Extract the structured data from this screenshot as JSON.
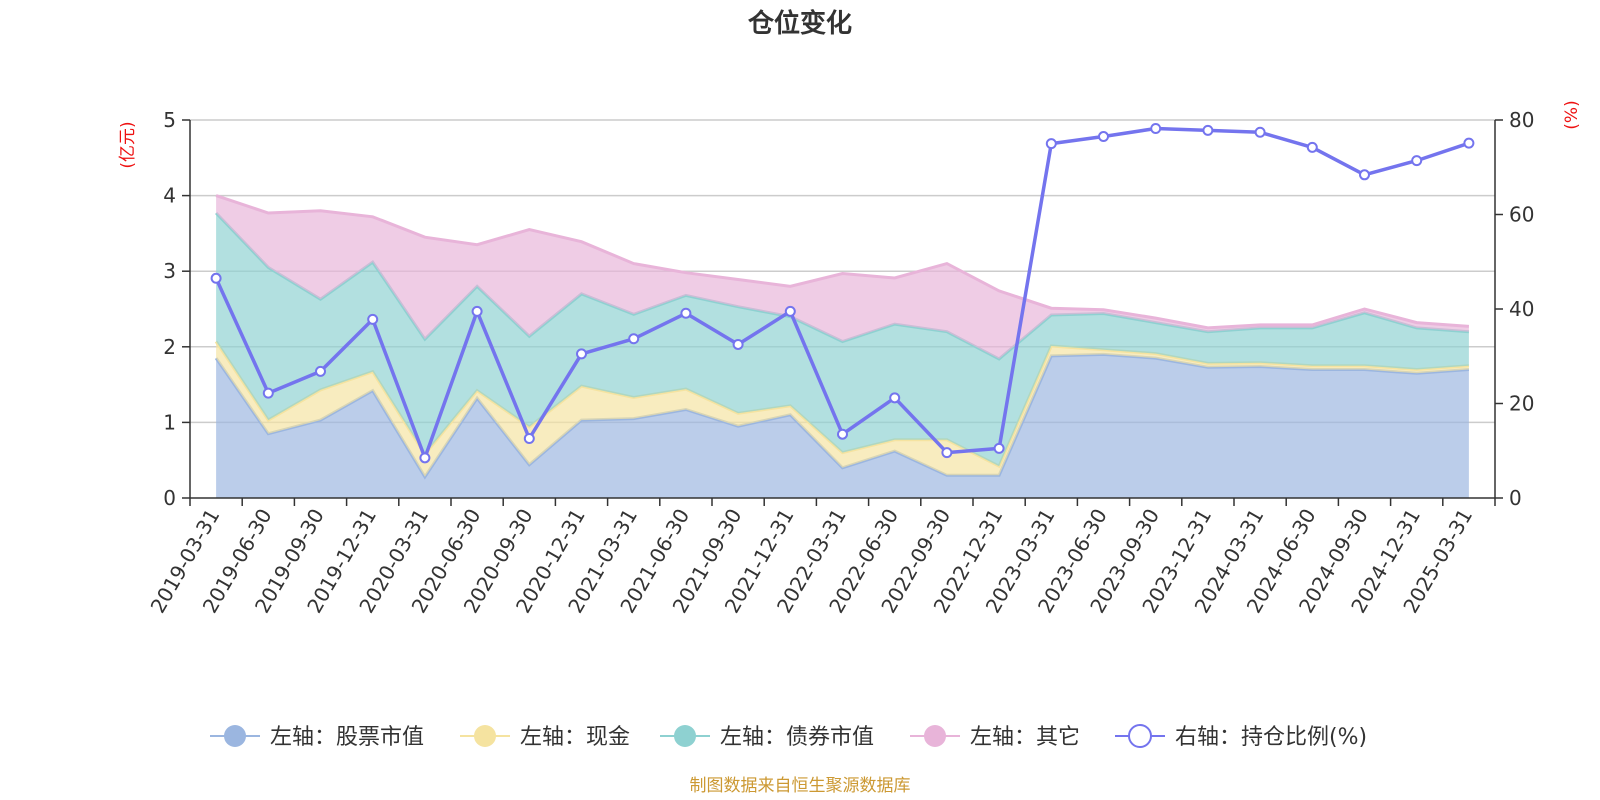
{
  "chart_data": {
    "type": "area",
    "title": "仓位变化",
    "left_axis_unit": "(亿元)",
    "right_axis_unit": "(%)",
    "left_ylim": [
      0,
      5
    ],
    "left_ticks": [
      "0",
      "1",
      "2",
      "3",
      "4",
      "5"
    ],
    "right_ylim": [
      0,
      80
    ],
    "right_ticks": [
      "0",
      "20",
      "40",
      "60",
      "80"
    ],
    "grid": true,
    "legend_position": "bottom",
    "categories": [
      "2019-03-31",
      "2019-06-30",
      "2019-09-30",
      "2019-12-31",
      "2020-03-31",
      "2020-06-30",
      "2020-09-30",
      "2020-12-31",
      "2021-03-31",
      "2021-06-30",
      "2021-09-30",
      "2021-12-31",
      "2022-03-31",
      "2022-06-30",
      "2022-09-30",
      "2022-12-31",
      "2023-03-31",
      "2023-06-30",
      "2023-09-30",
      "2023-12-31",
      "2024-03-31",
      "2024-06-30",
      "2024-09-30",
      "2024-12-31",
      "2025-03-31"
    ],
    "series": [
      {
        "name": "左轴：股票市值",
        "axis": "left",
        "kind": "stacked-area",
        "color": "#9bb6e0",
        "values": [
          1.85,
          0.85,
          1.03,
          1.42,
          0.28,
          1.32,
          0.44,
          1.03,
          1.05,
          1.17,
          0.95,
          1.1,
          0.4,
          0.62,
          0.3,
          0.3,
          1.88,
          1.9,
          1.85,
          1.73,
          1.74,
          1.7,
          1.7,
          1.65,
          1.7
        ]
      },
      {
        "name": "左轴：现金",
        "axis": "left",
        "kind": "stacked-area",
        "color": "#f5e3a0",
        "values": [
          0.22,
          0.18,
          0.4,
          0.25,
          0.3,
          0.1,
          0.5,
          0.45,
          0.28,
          0.27,
          0.17,
          0.12,
          0.2,
          0.15,
          0.47,
          0.12,
          0.13,
          0.06,
          0.06,
          0.05,
          0.05,
          0.05,
          0.05,
          0.05,
          0.05
        ]
      },
      {
        "name": "左轴：债券市值",
        "axis": "left",
        "kind": "stacked-area",
        "color": "#8ed1d1",
        "values": [
          1.7,
          2.02,
          1.2,
          1.45,
          1.52,
          1.38,
          1.2,
          1.22,
          1.1,
          1.24,
          1.41,
          1.18,
          1.47,
          1.53,
          1.43,
          1.42,
          0.41,
          0.48,
          0.41,
          0.42,
          0.46,
          0.5,
          0.7,
          0.55,
          0.45
        ]
      },
      {
        "name": "左轴：其它",
        "axis": "left",
        "kind": "stacked-area",
        "color": "#e8b4d9",
        "values": [
          0.23,
          0.72,
          1.17,
          0.6,
          1.35,
          0.55,
          1.41,
          0.69,
          0.67,
          0.3,
          0.36,
          0.4,
          0.9,
          0.61,
          0.9,
          0.9,
          0.09,
          0.05,
          0.06,
          0.05,
          0.04,
          0.04,
          0.05,
          0.07,
          0.07
        ]
      },
      {
        "name": "右轴：持仓比例(%)",
        "axis": "right",
        "kind": "line",
        "color": "#7474ee",
        "values": [
          46.5,
          22.2,
          26.8,
          37.8,
          8.5,
          39.5,
          12.6,
          30.5,
          33.7,
          39.1,
          32.5,
          39.5,
          13.5,
          21.2,
          9.6,
          10.5,
          75.0,
          76.5,
          78.2,
          77.8,
          77.4,
          74.2,
          68.4,
          71.4,
          75.1
        ]
      }
    ]
  },
  "source_note": "制图数据来自恒生聚源数据库"
}
